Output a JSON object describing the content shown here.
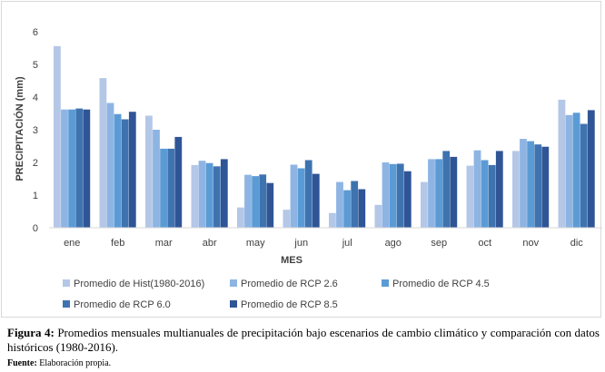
{
  "chart_data": {
    "type": "bar",
    "xlabel": "MES",
    "ylabel": "PRECIPITACIÓN (mm)",
    "ylim": [
      0,
      6
    ],
    "yticks": [
      "0",
      "1",
      "2",
      "3",
      "4",
      "5",
      "6"
    ],
    "grid": false,
    "legend_position": "bottom",
    "categories": [
      "ene",
      "feb",
      "mar",
      "abr",
      "may",
      "jun",
      "jul",
      "ago",
      "sep",
      "oct",
      "nov",
      "dic"
    ],
    "series": [
      {
        "name": "Promedio de Hist(1980-2016)",
        "color": "#b4c7e7",
        "values": [
          5.56,
          4.58,
          3.43,
          1.92,
          0.62,
          0.55,
          0.45,
          0.7,
          1.4,
          1.9,
          2.35,
          3.92
        ]
      },
      {
        "name": "Promedio de RCP 2.6",
        "color": "#8eb4e3",
        "values": [
          3.62,
          3.82,
          3.0,
          2.05,
          1.62,
          1.93,
          1.4,
          2.0,
          2.1,
          2.37,
          2.72,
          3.45
        ]
      },
      {
        "name": "Promedio de RCP 4.5",
        "color": "#5b9bd5",
        "values": [
          3.62,
          3.48,
          2.42,
          1.98,
          1.58,
          1.82,
          1.15,
          1.95,
          2.1,
          2.07,
          2.65,
          3.52
        ]
      },
      {
        "name": "Promedio de RCP 6.0",
        "color": "#3f73b0",
        "values": [
          3.65,
          3.32,
          2.42,
          1.88,
          1.63,
          2.07,
          1.43,
          1.96,
          2.35,
          1.92,
          2.55,
          3.18
        ]
      },
      {
        "name": "Promedio de RCP 8.5",
        "color": "#2f5597",
        "values": [
          3.62,
          3.55,
          2.78,
          2.1,
          1.37,
          1.65,
          1.18,
          1.73,
          2.17,
          2.35,
          2.48,
          3.6
        ]
      }
    ]
  },
  "caption": {
    "lead": "Figura 4:",
    "text": "Promedios mensuales multianuales de precipitación bajo escenarios de cambio climático y comparación con datos históricos (1980-2016)."
  },
  "source": {
    "lead": "Fuente:",
    "text": "Elaboración propia."
  }
}
